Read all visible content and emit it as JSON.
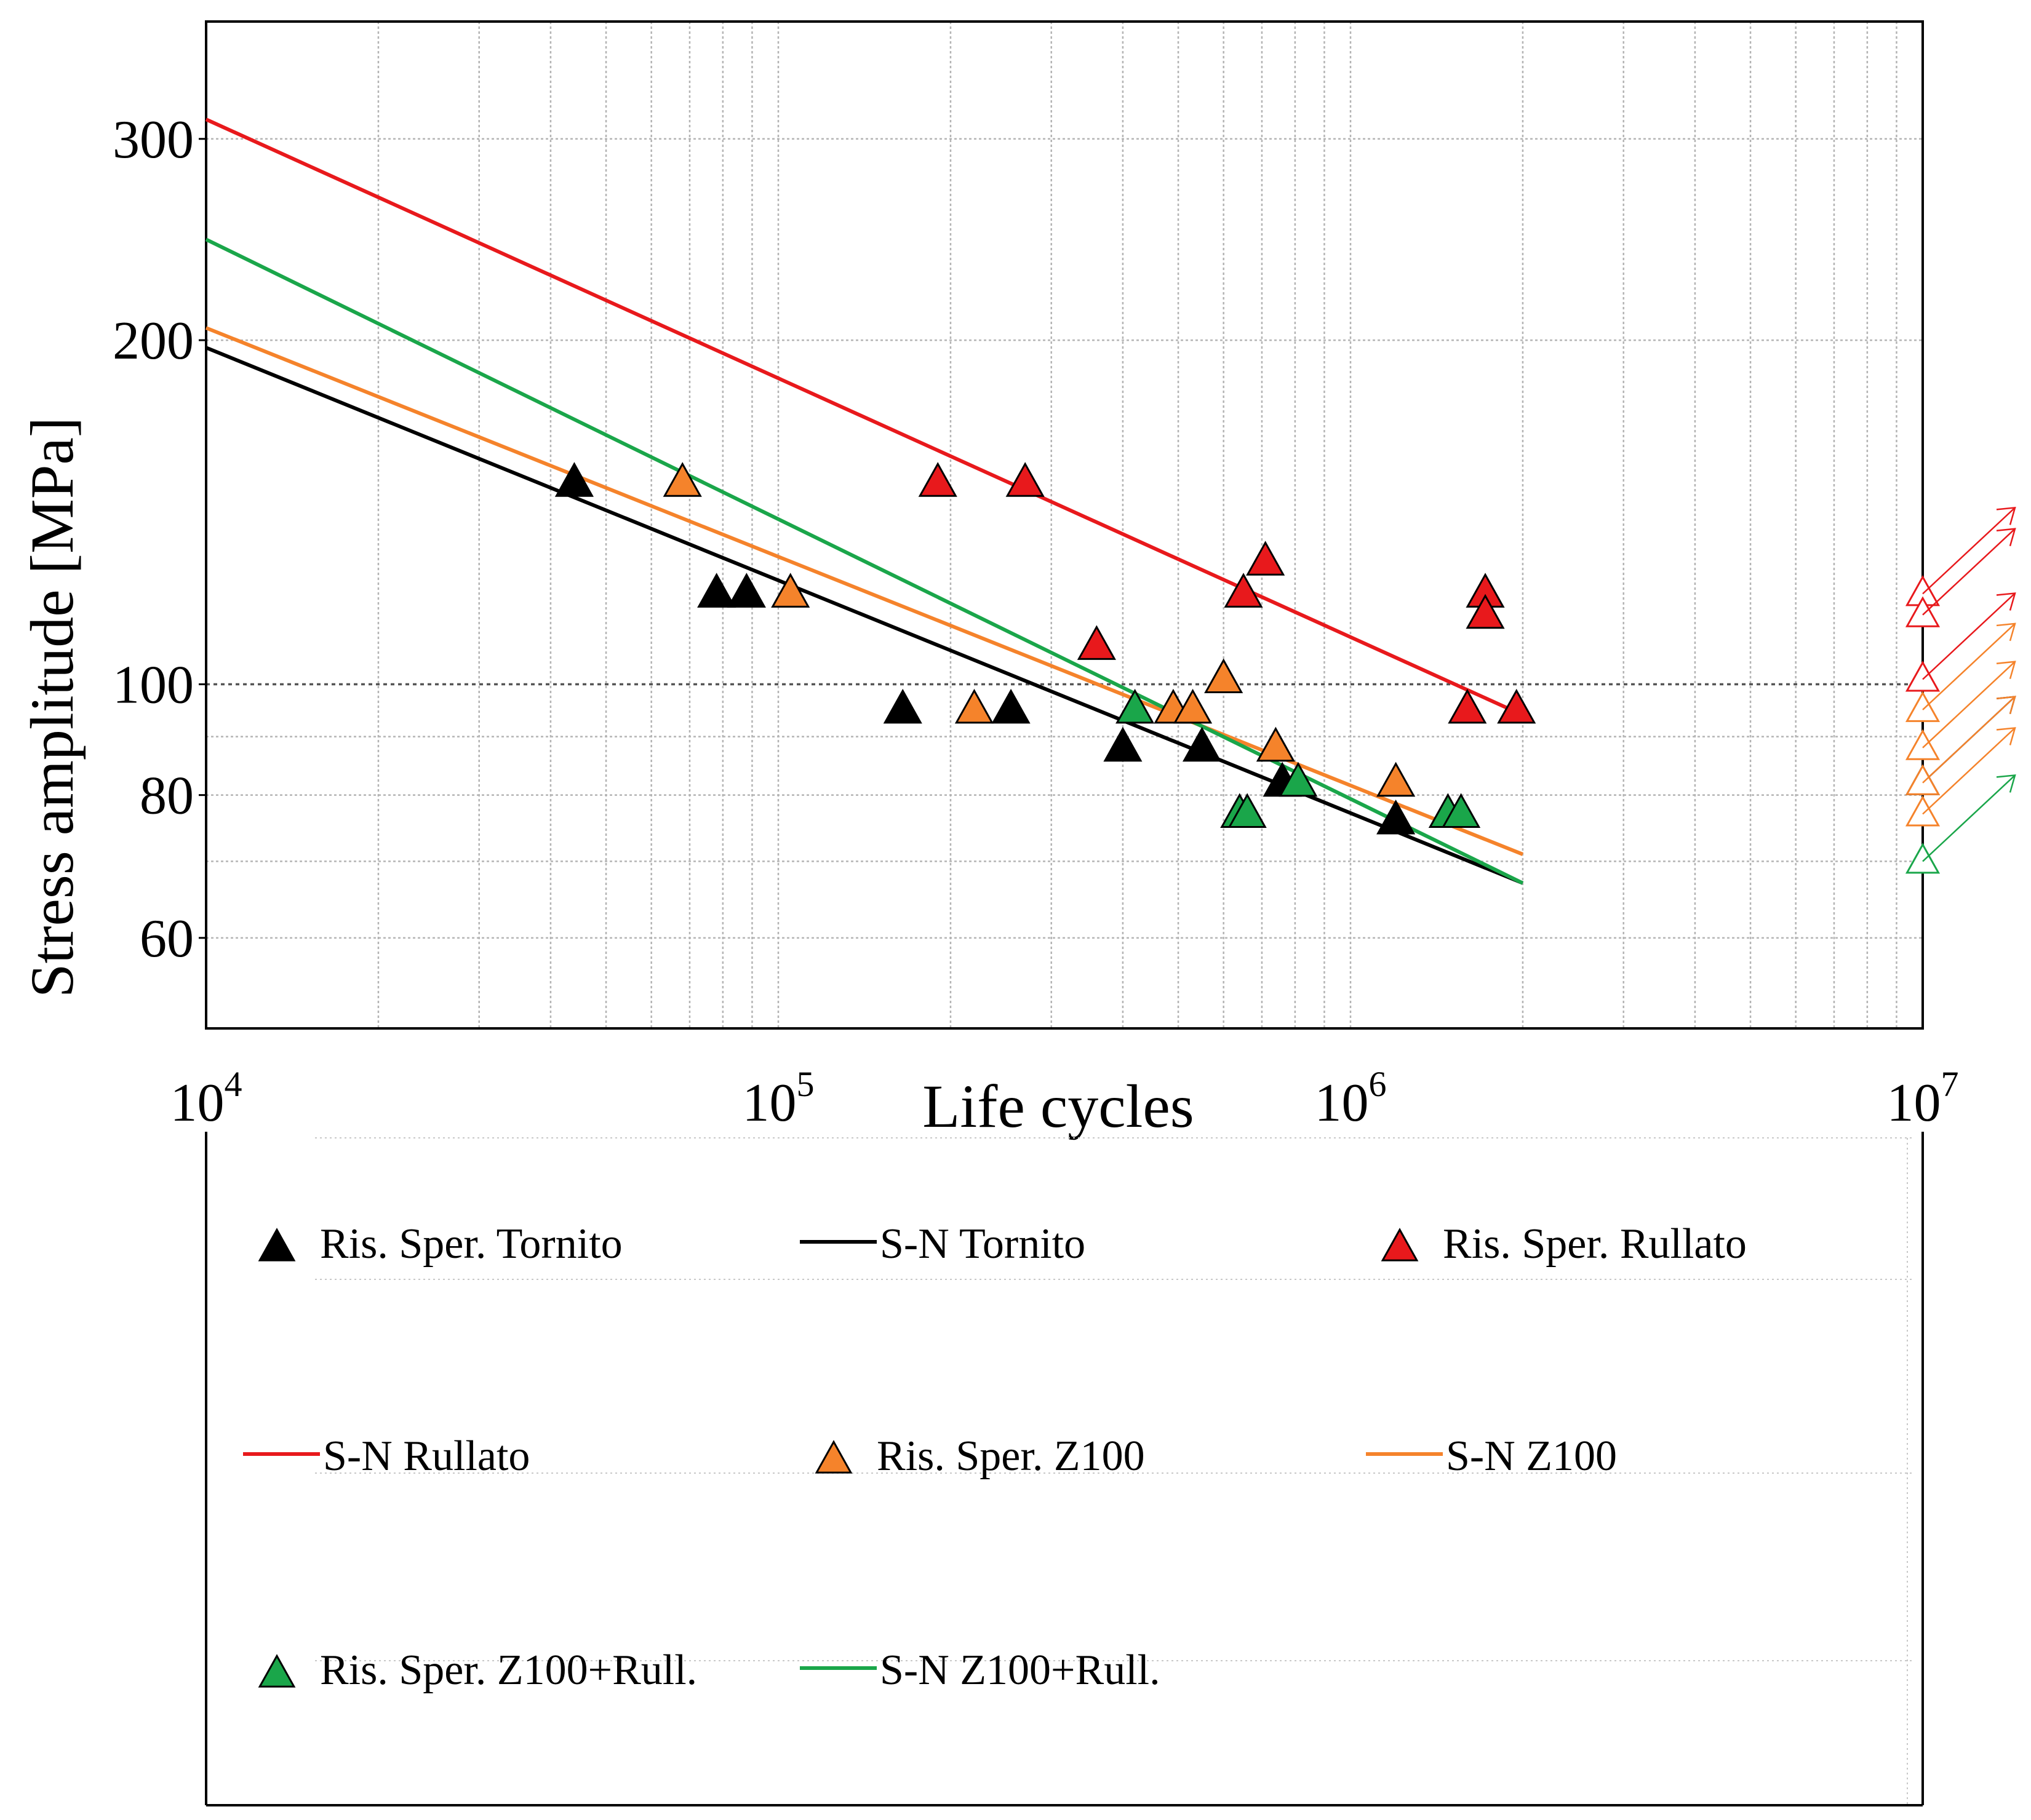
{
  "chart_data": {
    "type": "scatter",
    "xlabel": "Life cycles",
    "ylabel": "Stress amplitude [MPa]",
    "x_scale": "log",
    "y_scale": "log",
    "xlim": [
      10000,
      10000000
    ],
    "ylim": [
      50,
      380
    ],
    "x_ticks": [
      {
        "base": "10",
        "exp": "4",
        "value": 10000
      },
      {
        "base": "10",
        "exp": "5",
        "value": 100000
      },
      {
        "base": "10",
        "exp": "6",
        "value": 1000000
      },
      {
        "base": "10",
        "exp": "7",
        "value": 10000000
      }
    ],
    "y_ticks": [
      {
        "label": "60",
        "value": 60
      },
      {
        "label": "80",
        "value": 80
      },
      {
        "label": "100",
        "value": 100
      },
      {
        "label": "200",
        "value": 200
      },
      {
        "label": "300",
        "value": 300
      }
    ],
    "grid": true,
    "reference_line_y": 100,
    "legend_position": "below",
    "series": [
      {
        "name": "Ris. Sper. Tornito",
        "kind": "points",
        "color": "#000000",
        "points": [
          [
            44000,
            150
          ],
          [
            78000,
            120
          ],
          [
            88000,
            120
          ],
          [
            165000,
            95
          ],
          [
            255000,
            95
          ],
          [
            400000,
            88
          ],
          [
            550000,
            88
          ],
          [
            760000,
            82
          ],
          [
            1200000,
            76
          ]
        ]
      },
      {
        "name": "S-N Tornito",
        "kind": "line",
        "color": "#000000",
        "points": [
          [
            10000,
            197
          ],
          [
            2000000,
            67
          ]
        ]
      },
      {
        "name": "Ris. Sper. Rullato",
        "kind": "points",
        "color": "#e8191c",
        "points": [
          [
            190000,
            150
          ],
          [
            270000,
            150
          ],
          [
            360000,
            108
          ],
          [
            650000,
            120
          ],
          [
            710000,
            128
          ],
          [
            1600000,
            95
          ],
          [
            1720000,
            120
          ],
          [
            1720000,
            115
          ],
          [
            1950000,
            95
          ]
        ]
      },
      {
        "name": "S-N Rullato",
        "kind": "line",
        "color": "#e8191c",
        "points": [
          [
            10000,
            312
          ],
          [
            2000000,
            94
          ]
        ]
      },
      {
        "name": "Ris. Sper. Z100",
        "kind": "points",
        "color": "#f5832b",
        "points": [
          [
            68000,
            150
          ],
          [
            105000,
            120
          ],
          [
            220000,
            95
          ],
          [
            490000,
            95
          ],
          [
            530000,
            95
          ],
          [
            600000,
            101
          ],
          [
            740000,
            88
          ],
          [
            1200000,
            82
          ]
        ]
      },
      {
        "name": "S-N Z100",
        "kind": "line",
        "color": "#f5832b",
        "points": [
          [
            10000,
            205
          ],
          [
            2000000,
            71
          ]
        ]
      },
      {
        "name": "Ris. Sper. Z100+Rull.",
        "kind": "points",
        "color": "#1aa64a",
        "points": [
          [
            420000,
            95
          ],
          [
            640000,
            77
          ],
          [
            660000,
            77
          ],
          [
            810000,
            82
          ],
          [
            1480000,
            77
          ],
          [
            1560000,
            77
          ]
        ]
      },
      {
        "name": "S-N Z100+Rull.",
        "kind": "line",
        "color": "#1aa64a",
        "points": [
          [
            10000,
            245
          ],
          [
            2000000,
            67
          ]
        ]
      },
      {
        "name": "",
        "kind": "runouts",
        "at_x": 10000000,
        "points": [
          {
            "y": 120,
            "color": "#e8191c"
          },
          {
            "y": 115,
            "color": "#e8191c"
          },
          {
            "y": 101,
            "color": "#e8191c"
          },
          {
            "y": 95,
            "color": "#f5832b"
          },
          {
            "y": 88,
            "color": "#f5832b"
          },
          {
            "y": 82,
            "color": "#000000"
          },
          {
            "y": 82,
            "color": "#f5832b"
          },
          {
            "y": 77,
            "color": "#f5832b"
          },
          {
            "y": 70,
            "color": "#1aa64a"
          }
        ]
      }
    ]
  }
}
